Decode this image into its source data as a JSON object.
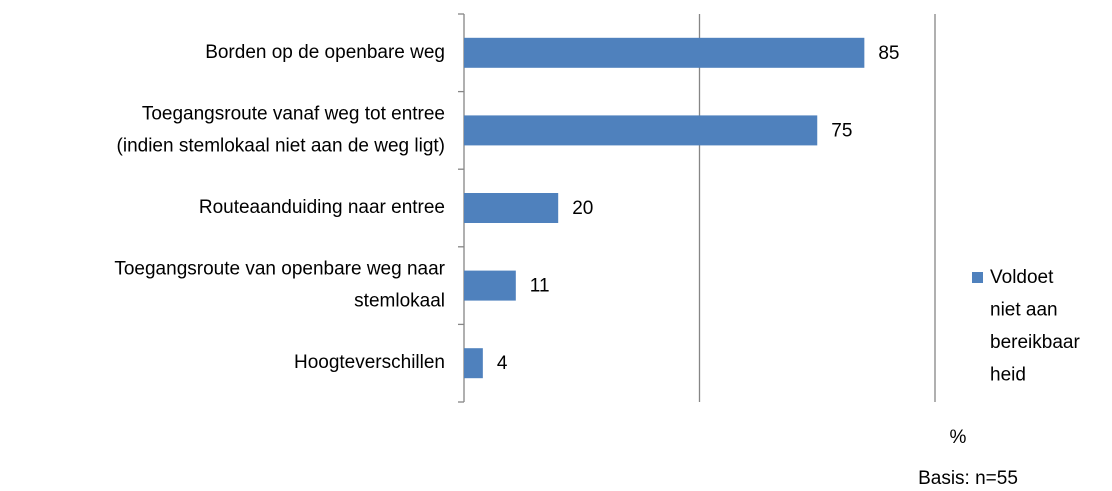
{
  "chart_data": {
    "type": "bar",
    "orientation": "horizontal",
    "categories": [
      "Borden op de openbare weg",
      "Toegangsroute vanaf weg tot entree\n(indien stemlokaal niet  aan de weg ligt)",
      "Routeaanduiding naar entree",
      "Toegangsroute van openbare weg naar\nstemlokaal",
      "Hoogteverschillen"
    ],
    "series": [
      {
        "name": "Voldoet\nniet aan\nbereikbaar\nheid",
        "color": "#4f81bd",
        "values": [
          85,
          75,
          20,
          11,
          4
        ]
      }
    ],
    "xlim": [
      0,
      100
    ],
    "xticks": [
      0,
      50,
      100
    ],
    "grid": true,
    "x_axis_label": "%",
    "note": "Basis: n=55",
    "legend": "right"
  }
}
